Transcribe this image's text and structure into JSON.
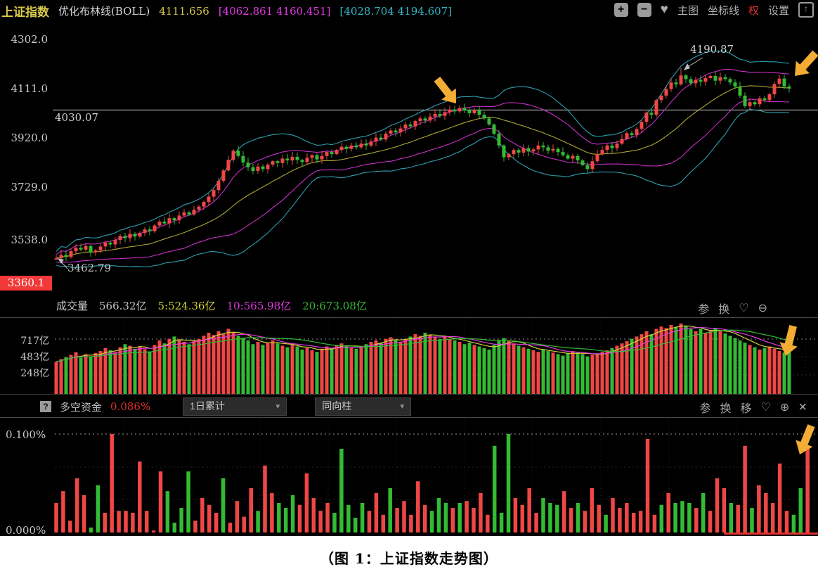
{
  "header": {
    "symbol": "上证指数",
    "indicator_name": "优化布林线(BOLL)",
    "value": "4111.656",
    "inner_band": "[4062.861 4160.451]",
    "outer_band": "[4028.704 4194.607]",
    "right_items": [
      {
        "name": "zoom-in-button",
        "glyph": "+",
        "type": "btn"
      },
      {
        "name": "zoom-out-button",
        "glyph": "−",
        "type": "btn"
      },
      {
        "name": "favorite-icon",
        "glyph": "♥",
        "type": "heart"
      },
      {
        "name": "main-chart-menu",
        "glyph": "主图",
        "type": "menu"
      },
      {
        "name": "axis-lines-menu",
        "glyph": "坐标线",
        "type": "menu"
      },
      {
        "name": "rights-adjust-menu",
        "glyph": "权",
        "type": "menu-red"
      },
      {
        "name": "settings-menu",
        "glyph": "设置",
        "type": "menu"
      },
      {
        "name": "export-button",
        "glyph": "↑",
        "type": "box"
      }
    ]
  },
  "main_chart": {
    "y_ticks": [
      "4302.0",
      "4111.0",
      "3920.0",
      "3729.0",
      "3538.0"
    ],
    "badge": "3360.1",
    "hline_label": "4030.07",
    "peak_label": "4190.87",
    "low_label": "3462.79"
  },
  "volume": {
    "title": "成交量",
    "current": "566.32亿",
    "ma5": "5:524.36亿",
    "ma10": "10:565.98亿",
    "ma20": "20:673.08亿",
    "y_ticks": [
      "717亿",
      "483亿",
      "248亿"
    ],
    "icons": [
      {
        "name": "params-icon",
        "glyph": "参"
      },
      {
        "name": "switch-icon",
        "glyph": "换"
      },
      {
        "name": "favorite-outline-icon",
        "glyph": "♡"
      },
      {
        "name": "zoom-out-icon",
        "glyph": "⊖"
      }
    ]
  },
  "indicator": {
    "help": "?",
    "title": "多空资金",
    "value": "0.086%",
    "dropdown1": "1日累计",
    "dropdown2": "同向柱",
    "caret": "▼",
    "y_top": "0.100%",
    "y_bottom": "0.000%",
    "icons": [
      {
        "name": "params-icon",
        "glyph": "参"
      },
      {
        "name": "switch-icon",
        "glyph": "换"
      },
      {
        "name": "move-icon",
        "glyph": "移"
      },
      {
        "name": "favorite-outline-icon",
        "glyph": "♡"
      },
      {
        "name": "zoom-in-icon",
        "glyph": "⊕"
      },
      {
        "name": "close-icon",
        "glyph": "×"
      }
    ]
  },
  "caption": {
    "text": "（图 1：上证指数走势图）"
  },
  "colors": {
    "up": "#ef4746",
    "down": "#33bb33",
    "boll_mid": "#b0a832",
    "boll_inner": "#c92fc9",
    "boll_outer": "#2e9fae",
    "ma5": "#d2d23a",
    "ma10": "#e23ae2",
    "ma20": "#35bb35",
    "hline": "#cfcfcf",
    "arrow": "#f3ad35",
    "badge_bg": "#f23939",
    "accent_yellow": "#d9c84b",
    "accent_magenta": "#e23ae2",
    "accent_cyan": "#31b4c4",
    "value_red": "#e03030"
  },
  "chart_data": [
    {
      "type": "candlestick",
      "title": "上证指数 daily with 优化布林线(BOLL)",
      "y_axis": {
        "ticks": [
          4302.0,
          4111.0,
          3920.0,
          3729.0,
          3538.0
        ],
        "visible_min": 3360.1,
        "visible_max": 4330
      },
      "hline": 4030.07,
      "first_open": 3460,
      "first_low": 3462.79,
      "peak_high": 4190.87,
      "last_close": 4111.656,
      "boll_current": {
        "mid": 4111.656,
        "inner": [
          4062.861,
          4160.451
        ],
        "outer": [
          4028.704,
          4194.607
        ]
      },
      "closes": [
        3465,
        3478,
        3470,
        3492,
        3505,
        3498,
        3512,
        3488,
        3495,
        3510,
        3525,
        3518,
        3535,
        3550,
        3542,
        3558,
        3548,
        3562,
        3575,
        3568,
        3590,
        3605,
        3598,
        3618,
        3610,
        3628,
        3640,
        3632,
        3650,
        3662,
        3680,
        3700,
        3725,
        3760,
        3800,
        3840,
        3875,
        3855,
        3830,
        3812,
        3798,
        3815,
        3805,
        3822,
        3835,
        3828,
        3845,
        3838,
        3852,
        3840,
        3832,
        3848,
        3858,
        3842,
        3855,
        3870,
        3862,
        3878,
        3890,
        3882,
        3895,
        3888,
        3902,
        3895,
        3910,
        3925,
        3918,
        3940,
        3952,
        3945,
        3960,
        3975,
        3968,
        3988,
        3998,
        3990,
        4005,
        4015,
        4008,
        4022,
        4032,
        4025,
        4038,
        4028,
        4018,
        4030,
        4012,
        3998,
        3975,
        3940,
        3895,
        3850,
        3862,
        3878,
        3868,
        3885,
        3872,
        3880,
        3895,
        3888,
        3875,
        3882,
        3870,
        3858,
        3845,
        3855,
        3838,
        3820,
        3805,
        3835,
        3862,
        3878,
        3895,
        3885,
        3902,
        3920,
        3942,
        3935,
        3958,
        3985,
        4020,
        4012,
        4068,
        4085,
        4110,
        4135,
        4128,
        4162,
        4148,
        4132,
        4145,
        4138,
        4152,
        4160,
        4142,
        4155,
        4148,
        4135,
        4120,
        4085,
        4045,
        4060,
        4052,
        4075,
        4068,
        4090,
        4130,
        4150,
        4120,
        4112
      ]
    },
    {
      "type": "bar",
      "title": "成交量 (亿)",
      "y_axis": {
        "ticks": [
          717,
          483,
          248
        ]
      },
      "current": 566.32,
      "ma5": 524.36,
      "ma10": 565.98,
      "ma20": 673.08,
      "values": [
        420,
        455,
        480,
        510,
        545,
        470,
        520,
        490,
        535,
        560,
        600,
        570,
        545,
        610,
        650,
        630,
        590,
        620,
        585,
        555,
        640,
        700,
        660,
        720,
        750,
        710,
        680,
        650,
        690,
        720,
        760,
        800,
        770,
        820,
        780,
        850,
        810,
        760,
        730,
        700,
        650,
        680,
        640,
        670,
        700,
        660,
        630,
        610,
        640,
        620,
        580,
        600,
        570,
        550,
        590,
        620,
        600,
        640,
        660,
        630,
        610,
        590,
        620,
        650,
        680,
        700,
        670,
        720,
        740,
        710,
        680,
        720,
        750,
        780,
        760,
        800,
        770,
        740,
        720,
        750,
        720,
        700,
        680,
        650,
        670,
        640,
        620,
        600,
        580,
        640,
        700,
        730,
        690,
        660,
        630,
        610,
        590,
        570,
        550,
        580,
        560,
        540,
        520,
        500,
        530,
        560,
        540,
        520,
        490,
        510,
        530,
        550,
        570,
        600,
        630,
        660,
        690,
        720,
        750,
        780,
        820,
        780,
        850,
        880,
        860,
        900,
        870,
        920,
        890,
        850,
        820,
        850,
        800,
        830,
        860,
        820,
        790,
        760,
        730,
        700,
        670,
        640,
        610,
        580,
        600,
        620,
        590,
        560,
        540,
        585
      ]
    },
    {
      "type": "bar",
      "title": "多空资金 (%)",
      "current": 0.086,
      "y_axis": {
        "max": 0.1,
        "min": 0.0
      },
      "unit": "0.001%",
      "values_milli_pct": [
        30,
        42,
        12,
        55,
        38,
        5,
        48,
        20,
        100,
        22,
        22,
        20,
        72,
        22,
        2,
        62,
        42,
        10,
        25,
        62,
        12,
        35,
        28,
        20,
        55,
        10,
        32,
        16,
        45,
        22,
        68,
        40,
        30,
        25,
        38,
        28,
        60,
        35,
        22,
        30,
        20,
        85,
        28,
        15,
        30,
        22,
        40,
        18,
        45,
        25,
        32,
        18,
        52,
        28,
        22,
        35,
        30,
        25,
        30,
        32,
        25,
        40,
        18,
        88,
        20,
        100,
        35,
        28,
        45,
        20,
        35,
        30,
        28,
        42,
        25,
        30,
        22,
        45,
        28,
        18,
        35,
        25,
        30,
        20,
        22,
        95,
        18,
        28,
        40,
        30,
        32,
        30,
        25,
        40,
        22,
        55,
        45,
        30,
        28,
        88,
        25,
        48,
        40,
        30,
        70,
        22,
        18,
        45,
        85
      ],
      "colors": "rrrrrggrrrrrrrrrggggrrrrgrrrrgrrgggrrrrrgggggrrrgrrrrrgggrgrrrrgggrrrrgggrrgrrrgrrrrrrrgrgggrgrrrgrrgrrrrrggr"
    }
  ]
}
